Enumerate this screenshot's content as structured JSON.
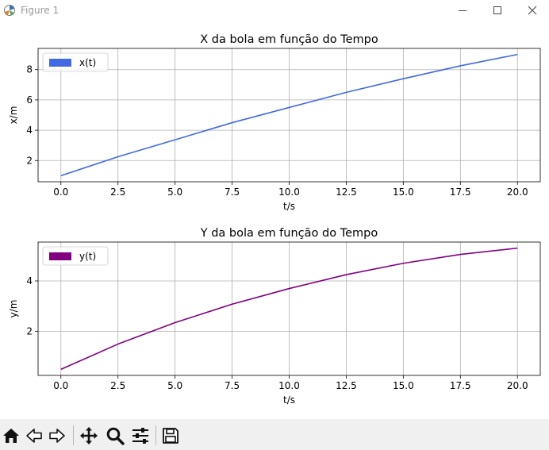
{
  "window": {
    "title": "Figure 1",
    "icons": [
      "app-icon",
      "minimize-icon",
      "maximize-icon",
      "close-icon"
    ]
  },
  "chart_data": [
    {
      "type": "line",
      "title": "X da bola em função do Tempo",
      "xlabel": "t/s",
      "ylabel": "x/m",
      "xlim": [
        -1.0,
        21.0
      ],
      "ylim": [
        0.6,
        9.4
      ],
      "xticks": [
        0.0,
        2.5,
        5.0,
        7.5,
        10.0,
        12.5,
        15.0,
        17.5,
        20.0
      ],
      "xtick_labels": [
        "0.0",
        "2.5",
        "5.0",
        "7.5",
        "10.0",
        "12.5",
        "15.0",
        "17.5",
        "20.0"
      ],
      "yticks": [
        2,
        4,
        6,
        8
      ],
      "ytick_labels": [
        "2",
        "4",
        "6",
        "8"
      ],
      "grid": true,
      "legend": "upper-left",
      "series": [
        {
          "name": "x(t)",
          "color": "#4169e1",
          "x": [
            0,
            2.5,
            5,
            7.5,
            10,
            12.5,
            15,
            17.5,
            20
          ],
          "y": [
            1.0,
            2.25,
            3.37,
            4.5,
            5.5,
            6.5,
            7.4,
            8.25,
            9.0
          ]
        }
      ]
    },
    {
      "type": "line",
      "title": "Y da bola em função do Tempo",
      "xlabel": "t/s",
      "ylabel": "y/m",
      "xlim": [
        -1.0,
        21.0
      ],
      "ylim": [
        0.26,
        5.54
      ],
      "xticks": [
        0.0,
        2.5,
        5.0,
        7.5,
        10.0,
        12.5,
        15.0,
        17.5,
        20.0
      ],
      "xtick_labels": [
        "0.0",
        "2.5",
        "5.0",
        "7.5",
        "10.0",
        "12.5",
        "15.0",
        "17.5",
        "20.0"
      ],
      "yticks": [
        2,
        4
      ],
      "ytick_labels": [
        "2",
        "4"
      ],
      "grid": true,
      "legend": "upper-left",
      "series": [
        {
          "name": "y(t)",
          "color": "#800080",
          "x": [
            0,
            2.5,
            5,
            7.5,
            10,
            12.5,
            15,
            17.5,
            20
          ],
          "y": [
            0.5,
            1.5,
            2.35,
            3.08,
            3.7,
            4.25,
            4.7,
            5.05,
            5.3
          ]
        }
      ]
    }
  ],
  "toolbar": {
    "buttons": [
      {
        "name": "home-button",
        "icon": "home-icon"
      },
      {
        "name": "back-button",
        "icon": "back-arrow-icon"
      },
      {
        "name": "forward-button",
        "icon": "forward-arrow-icon"
      },
      {
        "name": "pan-button",
        "icon": "pan-icon"
      },
      {
        "name": "zoom-button",
        "icon": "zoom-icon"
      },
      {
        "name": "configure-subplots-button",
        "icon": "sliders-icon"
      },
      {
        "name": "save-button",
        "icon": "save-icon"
      }
    ]
  }
}
